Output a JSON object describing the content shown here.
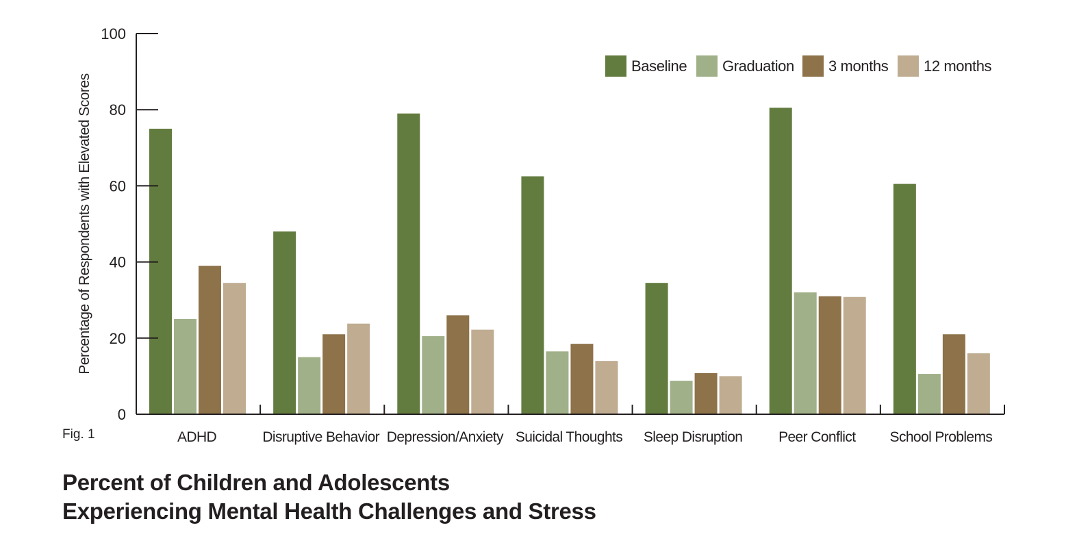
{
  "figure_label": "Fig. 1",
  "title_lines": [
    "Percent of Children and Adolescents",
    "Experiencing Mental Health Challenges and Stress"
  ],
  "chart_data": {
    "type": "bar",
    "title": "Percent of Children and Adolescents Experiencing Mental Health Challenges and Stress",
    "xlabel": "",
    "ylabel": "Percentage of Respondents with Elevated Scores",
    "ylim": [
      0,
      100
    ],
    "yticks": [
      0,
      20,
      40,
      60,
      80,
      100
    ],
    "grid": false,
    "legend_position": "top-right",
    "categories": [
      "ADHD",
      "Disruptive Behavior",
      "Depression/Anxiety",
      "Suicidal Thoughts",
      "Sleep Disruption",
      "Peer Conflict",
      "School Problems"
    ],
    "series": [
      {
        "name": "Baseline",
        "color": "#627b3e",
        "values": [
          75,
          48,
          79,
          62.5,
          34.5,
          80.5,
          60.5
        ]
      },
      {
        "name": "Graduation",
        "color": "#a0b088",
        "values": [
          25,
          15,
          20.5,
          16.5,
          8.8,
          32,
          10.6
        ]
      },
      {
        "name": "3 months",
        "color": "#8d724a",
        "values": [
          39,
          21,
          26,
          18.5,
          10.8,
          31,
          21
        ]
      },
      {
        "name": "12 months",
        "color": "#bfac91",
        "values": [
          34.5,
          23.8,
          22.2,
          14,
          10,
          30.8,
          16
        ]
      }
    ]
  }
}
